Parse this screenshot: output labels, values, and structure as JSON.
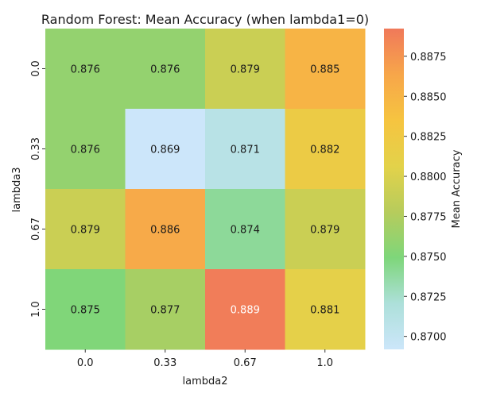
{
  "chart_data": {
    "type": "heatmap",
    "title": "Random Forest: Mean Accuracy (when lambda1=0)",
    "xlabel": "lambda2",
    "ylabel": "lambda3",
    "x_categories": [
      "0.0",
      "0.33",
      "0.67",
      "1.0"
    ],
    "y_categories": [
      "0.0",
      "0.33",
      "0.67",
      "1.0"
    ],
    "values": [
      [
        0.876,
        0.876,
        0.879,
        0.885
      ],
      [
        0.876,
        0.869,
        0.871,
        0.882
      ],
      [
        0.879,
        0.886,
        0.874,
        0.879
      ],
      [
        0.875,
        0.877,
        0.889,
        0.881
      ]
    ],
    "cell_labels": [
      [
        "0.876",
        "0.876",
        "0.879",
        "0.885"
      ],
      [
        "0.876",
        "0.869",
        "0.871",
        "0.882"
      ],
      [
        "0.879",
        "0.886",
        "0.874",
        "0.879"
      ],
      [
        "0.875",
        "0.877",
        "0.889",
        "0.881"
      ]
    ],
    "colorbar": {
      "label": "Mean Accuracy",
      "range": [
        0.86919,
        0.88923
      ],
      "ticks": [
        "0.8700",
        "0.8725",
        "0.8750",
        "0.8775",
        "0.8800",
        "0.8825",
        "0.8850",
        "0.8875"
      ],
      "colors": [
        "#cce6fa",
        "#ade0da",
        "#7ed67a",
        "#b7cc5c",
        "#e3d24a",
        "#f6c440",
        "#f7a64a",
        "#f0795a"
      ]
    }
  }
}
